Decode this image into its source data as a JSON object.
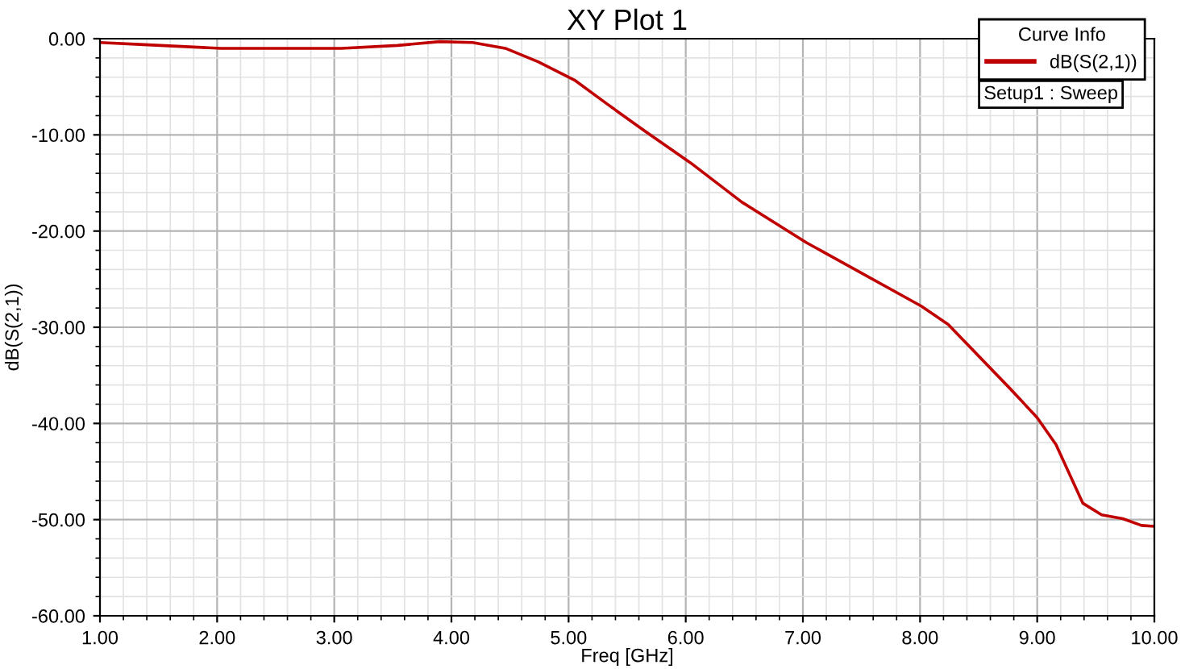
{
  "chart_data": {
    "type": "line",
    "title": "XY Plot 1",
    "xlabel": "Freq [GHz]",
    "ylabel": "dB(S(2,1))",
    "legend_title": "Curve Info",
    "legend": "top right",
    "grid": true,
    "annotations": [
      "Setup1 : Sweep"
    ],
    "xlim": [
      1,
      10
    ],
    "ylim": [
      -60,
      0
    ],
    "xticks": [
      {
        "value": 1,
        "label": "1.00"
      },
      {
        "value": 2,
        "label": "2.00"
      },
      {
        "value": 3,
        "label": "3.00"
      },
      {
        "value": 4,
        "label": "4.00"
      },
      {
        "value": 5,
        "label": "5.00"
      },
      {
        "value": 6,
        "label": "6.00"
      },
      {
        "value": 7,
        "label": "7.00"
      },
      {
        "value": 8,
        "label": "8.00"
      },
      {
        "value": 9,
        "label": "9.00"
      },
      {
        "value": 10,
        "label": "10.00"
      }
    ],
    "yticks": [
      {
        "value": -60,
        "label": "-60.00"
      },
      {
        "value": -50,
        "label": "-50.00"
      },
      {
        "value": -40,
        "label": "-40.00"
      },
      {
        "value": -30,
        "label": "-30.00"
      },
      {
        "value": -20,
        "label": "-20.00"
      },
      {
        "value": -10,
        "label": "-10.00"
      },
      {
        "value": 0,
        "label": "0.00"
      }
    ],
    "series": [
      {
        "name": "dB(S(2,1))",
        "color": "#c00000",
        "x": [
          1.0,
          1.34,
          2.03,
          3.06,
          3.54,
          3.9,
          4.18,
          4.46,
          4.74,
          5.05,
          5.33,
          5.65,
          6.04,
          6.48,
          7.03,
          8.01,
          8.24,
          8.77,
          9.0,
          9.16,
          9.39,
          9.55,
          9.73,
          9.89,
          10.0
        ],
        "values": [
          -0.4,
          -0.6,
          -1.0,
          -1.0,
          -0.7,
          -0.3,
          -0.4,
          -1.0,
          -2.4,
          -4.3,
          -6.8,
          -9.6,
          -12.9,
          -17.0,
          -21.2,
          -27.8,
          -29.7,
          -36.4,
          -39.4,
          -42.2,
          -48.3,
          -49.5,
          -49.9,
          -50.6,
          -50.7
        ]
      }
    ]
  }
}
